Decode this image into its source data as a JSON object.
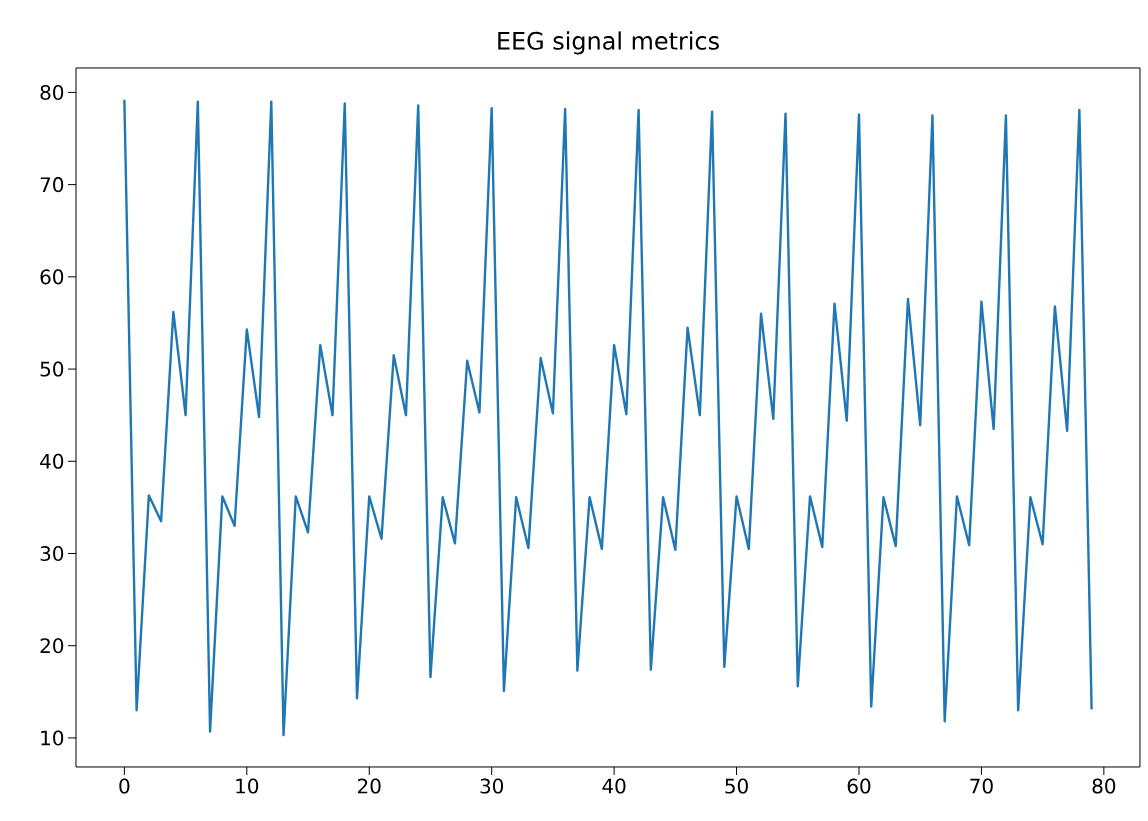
{
  "chart_data": {
    "type": "line",
    "title": "EEG signal metrics",
    "x": [
      0,
      1,
      2,
      3,
      4,
      5,
      6,
      7,
      8,
      9,
      10,
      11,
      12,
      13,
      14,
      15,
      16,
      17,
      18,
      19,
      20,
      21,
      22,
      23,
      24,
      25,
      26,
      27,
      28,
      29,
      30,
      31,
      32,
      33,
      34,
      35,
      36,
      37,
      38,
      39,
      40,
      41,
      42,
      43,
      44,
      45,
      46,
      47,
      48,
      49,
      50,
      51,
      52,
      53,
      54,
      55,
      56,
      57,
      58,
      59,
      60,
      61,
      62,
      63,
      64,
      65,
      66,
      67,
      68,
      69,
      70,
      71,
      72,
      73,
      74,
      75,
      76,
      77,
      78,
      79
    ],
    "series": [
      {
        "color": "#1f77b4",
        "values": [
          79.2,
          13,
          36.3,
          33.5,
          56.2,
          45,
          79,
          10.7,
          36.2,
          33,
          54.3,
          44.8,
          79,
          10.3,
          36.2,
          32.3,
          52.6,
          45,
          78.8,
          14.3,
          36.2,
          31.6,
          51.5,
          45,
          78.6,
          16.6,
          36.1,
          31.1,
          50.9,
          45.3,
          78.3,
          15.1,
          36.1,
          30.6,
          51.2,
          45.2,
          78.2,
          17.3,
          36.1,
          30.5,
          52.6,
          45.1,
          78.1,
          17.4,
          36.1,
          30.4,
          54.5,
          45,
          77.9,
          17.7,
          36.2,
          30.5,
          56,
          44.6,
          77.7,
          15.6,
          36.2,
          30.7,
          57.1,
          44.4,
          77.6,
          13.4,
          36.1,
          30.8,
          57.6,
          43.9,
          77.5,
          11.8,
          36.2,
          30.9,
          57.3,
          43.5,
          77.5,
          13,
          36.1,
          31,
          56.8,
          43.3,
          78.1,
          13.1
        ]
      }
    ],
    "xlim": [
      -3.95,
      82.95
    ],
    "ylim": [
      6.85,
      82.65
    ],
    "xticks": [
      0,
      10,
      20,
      30,
      40,
      50,
      60,
      70,
      80
    ],
    "yticks": [
      10,
      20,
      30,
      40,
      50,
      60,
      70,
      80
    ],
    "grid": false,
    "marker": "none",
    "line_style": "solid"
  }
}
